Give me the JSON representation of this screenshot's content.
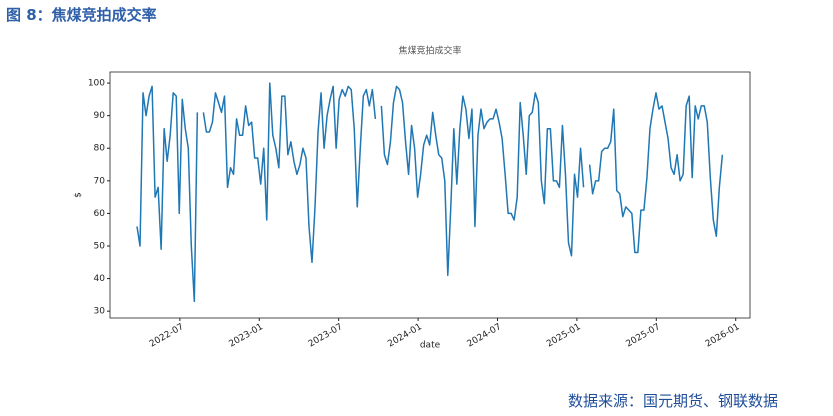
{
  "header": "图 8：焦煤竞拍成交率",
  "source": "数据来源：国元期货、钢联数据",
  "chart_data": {
    "type": "line",
    "title": "焦煤竞拍成交率",
    "xlabel": "date",
    "ylabel": "$",
    "color": "#1f77b4",
    "xlim": [
      2022.06,
      2026.09
    ],
    "ylim": [
      27.9,
      103.4
    ],
    "xticks": [
      {
        "value": 2022.5,
        "label": "2022-07"
      },
      {
        "value": 2023.0,
        "label": "2023-01"
      },
      {
        "value": 2023.5,
        "label": "2023-07"
      },
      {
        "value": 2024.0,
        "label": "2024-01"
      },
      {
        "value": 2024.5,
        "label": "2024-07"
      },
      {
        "value": 2025.0,
        "label": "2025-01"
      },
      {
        "value": 2025.5,
        "label": "2025-07"
      },
      {
        "value": 2026.0,
        "label": "2026-01"
      }
    ],
    "yticks": [
      30,
      40,
      50,
      60,
      70,
      80,
      90,
      100
    ],
    "x": [
      2022.23,
      2022.249,
      2022.268,
      2022.287,
      2022.306,
      2022.325,
      2022.344,
      2022.363,
      2022.382,
      2022.401,
      2022.42,
      2022.439,
      2022.458,
      2022.477,
      2022.496,
      2022.515,
      2022.534,
      2022.553,
      2022.572,
      2022.591,
      2022.61,
      2022.629,
      2022.648,
      2022.667,
      2022.686,
      2022.705,
      2022.724,
      2022.743,
      2022.762,
      2022.781,
      2022.8,
      2022.819,
      2022.838,
      2022.857,
      2022.876,
      2022.895,
      2022.914,
      2022.933,
      2022.952,
      2022.971,
      2022.99,
      2023.009,
      2023.028,
      2023.047,
      2023.066,
      2023.085,
      2023.104,
      2023.123,
      2023.142,
      2023.161,
      2023.18,
      2023.199,
      2023.218,
      2023.237,
      2023.256,
      2023.275,
      2023.294,
      2023.313,
      2023.332,
      2023.351,
      2023.37,
      2023.389,
      2023.408,
      2023.427,
      2023.446,
      2023.465,
      2023.484,
      2023.503,
      2023.522,
      2023.541,
      2023.56,
      2023.579,
      2023.598,
      2023.617,
      2023.636,
      2023.655,
      2023.674,
      2023.693,
      2023.712,
      2023.731,
      2023.75,
      2023.769,
      2023.788,
      2023.807,
      2023.826,
      2023.845,
      2023.864,
      2023.883,
      2023.902,
      2023.921,
      2023.94,
      2023.959,
      2023.978,
      2023.997,
      2024.016,
      2024.035,
      2024.054,
      2024.073,
      2024.092,
      2024.111,
      2024.13,
      2024.149,
      2024.168,
      2024.187,
      2024.206,
      2024.225,
      2024.244,
      2024.263,
      2024.282,
      2024.301,
      2024.32,
      2024.339,
      2024.358,
      2024.377,
      2024.396,
      2024.415,
      2024.434,
      2024.453,
      2024.472,
      2024.491,
      2024.51,
      2024.529,
      2024.548,
      2024.567,
      2024.586,
      2024.605,
      2024.624,
      2024.643,
      2024.662,
      2024.681,
      2024.7,
      2024.719,
      2024.738,
      2024.757,
      2024.776,
      2024.795,
      2024.814,
      2024.833,
      2024.852,
      2024.871,
      2024.89,
      2024.909,
      2024.928,
      2024.947,
      2024.966,
      2024.985,
      2025.004,
      2025.023,
      2025.042,
      2025.061,
      2025.08,
      2025.099,
      2025.118,
      2025.137,
      2025.156,
      2025.175,
      2025.194,
      2025.213,
      2025.232,
      2025.251,
      2025.27,
      2025.289,
      2025.308,
      2025.327,
      2025.346,
      2025.365,
      2025.384,
      2025.403,
      2025.422,
      2025.441,
      2025.46,
      2025.479,
      2025.498,
      2025.517,
      2025.536,
      2025.555,
      2025.574,
      2025.593,
      2025.612,
      2025.631,
      2025.65,
      2025.669,
      2025.688,
      2025.707,
      2025.726,
      2025.745,
      2025.764,
      2025.783,
      2025.802,
      2025.821,
      2025.84,
      2025.859,
      2025.878,
      2025.897,
      2025.916
    ],
    "values": [
      56,
      50,
      97,
      90,
      96,
      99,
      65,
      68,
      49,
      86,
      76,
      84,
      97,
      96,
      60,
      95,
      86,
      80,
      50,
      33,
      91,
      null,
      91,
      85,
      85,
      88,
      97,
      94,
      91,
      96,
      68,
      74,
      72,
      89,
      84,
      84,
      93,
      87,
      88,
      77,
      77,
      69,
      80,
      58,
      100,
      84,
      80,
      74,
      96,
      96,
      78,
      82,
      76,
      72,
      75,
      80,
      77,
      56,
      45,
      62,
      85,
      97,
      80,
      90,
      95,
      99,
      80,
      95,
      98,
      96,
      99,
      98,
      86,
      62,
      80,
      96,
      98,
      93,
      98,
      89,
      null,
      93,
      78,
      75,
      82,
      94,
      99,
      98,
      94,
      82,
      72,
      87,
      80,
      65,
      72,
      81,
      84,
      81,
      91,
      84,
      78,
      77,
      70,
      41,
      62,
      86,
      69,
      86,
      96,
      92,
      83,
      92,
      56,
      84,
      92,
      86,
      88,
      89,
      89,
      92,
      88,
      83,
      72,
      60,
      60,
      58,
      65,
      94,
      84,
      72,
      90,
      91,
      97,
      94,
      70,
      63,
      86,
      86,
      70,
      70,
      68,
      87,
      72,
      51,
      47,
      72,
      65,
      80,
      68,
      null,
      75,
      66,
      70,
      70,
      79,
      80,
      80,
      82,
      92,
      67,
      66,
      59,
      62,
      61,
      60,
      48,
      48,
      61,
      61,
      71,
      86,
      92,
      97,
      92,
      93,
      88,
      83,
      74,
      72,
      78,
      70,
      72,
      93,
      96,
      71,
      93,
      89,
      93,
      93,
      88,
      71,
      58,
      53,
      68,
      78
    ]
  }
}
